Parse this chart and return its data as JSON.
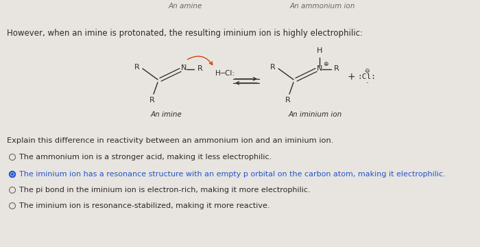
{
  "bg_color": "#e8e5e0",
  "title_top_left": "An amine",
  "title_top_right": "An ammonium ion",
  "intro_text": "However, when an imine is protonated, the resulting iminium ion is highly electrophilic:",
  "label_imine": "An imine",
  "label_iminium": "An iminium ion",
  "question_text": "Explain this difference in reactivity between an ammonium ion and an iminium ion.",
  "options": [
    {
      "text": "The ammonium ion is a stronger acid, making it less electrophilic.",
      "selected": false
    },
    {
      "text": "The iminium ion has a resonance structure with an empty p orbital on the carbon atom, making it electrophilic.",
      "selected": true
    },
    {
      "text": "The pi bond in the iminium ion is electron-rich, making it more electrophilic.",
      "selected": false
    },
    {
      "text": "The iminium ion is resonance-stabilized, making it more reactive.",
      "selected": false
    }
  ],
  "selected_color": "#2255cc",
  "unselected_color": "#666666",
  "text_color": "#2a2a2a",
  "font_size_body": 8.5,
  "font_size_top": 7.5,
  "font_size_chem": 8.0,
  "font_size_option": 8.0,
  "font_size_question": 8.2
}
